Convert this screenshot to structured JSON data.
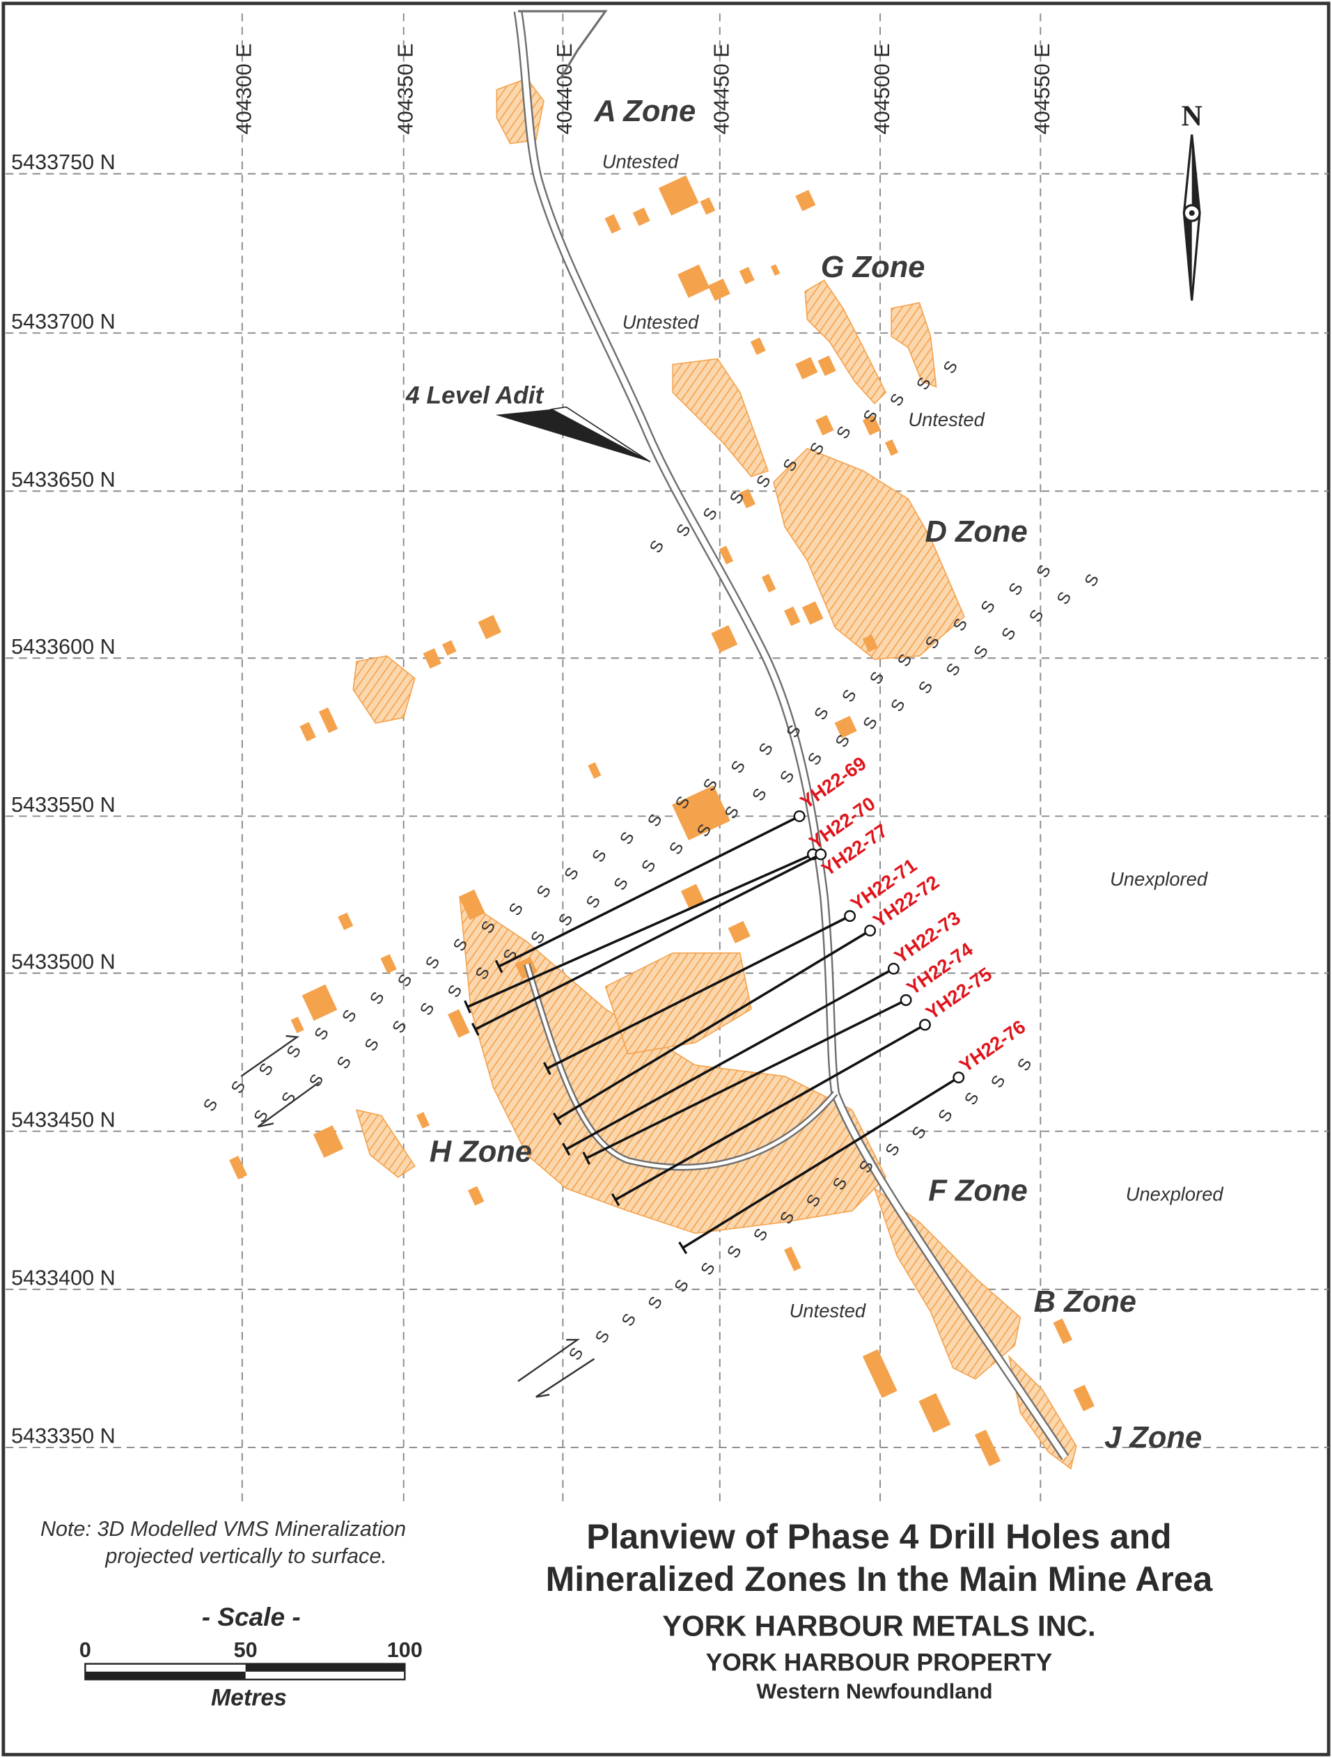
{
  "eastings": [
    "404300 E",
    "404350 E",
    "404400 E",
    "404450 E",
    "404500 E",
    "404550 E"
  ],
  "northings": [
    "5433750 N",
    "5433700 N",
    "5433650 N",
    "5433600 N",
    "5433550 N",
    "5433500 N",
    "5433450 N",
    "5433400 N",
    "5433350 N"
  ],
  "zones": [
    "A Zone",
    "G Zone",
    "D Zone",
    "H Zone",
    "F Zone",
    "B Zone",
    "J Zone"
  ],
  "annotations": {
    "untested": "Untested",
    "unexplored": "Unexplored",
    "adit": "4 Level Adit",
    "north": "N",
    "fault_symbol": "S"
  },
  "drill_holes": [
    "YH22-69",
    "YH22-70",
    "YH22-77",
    "YH22-71",
    "YH22-72",
    "YH22-73",
    "YH22-74",
    "YH22-75",
    "YH22-76"
  ],
  "note": {
    "line1": "Note: 3D Modelled VMS Mineralization",
    "line2": "projected vertically to surface."
  },
  "scale": {
    "title": "- Scale -",
    "ticks": [
      "0",
      "50",
      "100"
    ],
    "unit": "Metres"
  },
  "title": {
    "line1": "Planview of Phase 4 Drill Holes and",
    "line2": "Mineralized Zones In the Main Mine Area",
    "company": "YORK HARBOUR METALS INC.",
    "property": "YORK HARBOUR PROPERTY",
    "region": "Western Newfoundland"
  },
  "colors": {
    "mineralization": "#f4a24c",
    "drill_label": "#e0141b",
    "grid": "#8a8a8a",
    "road": "#6e6e6e"
  }
}
